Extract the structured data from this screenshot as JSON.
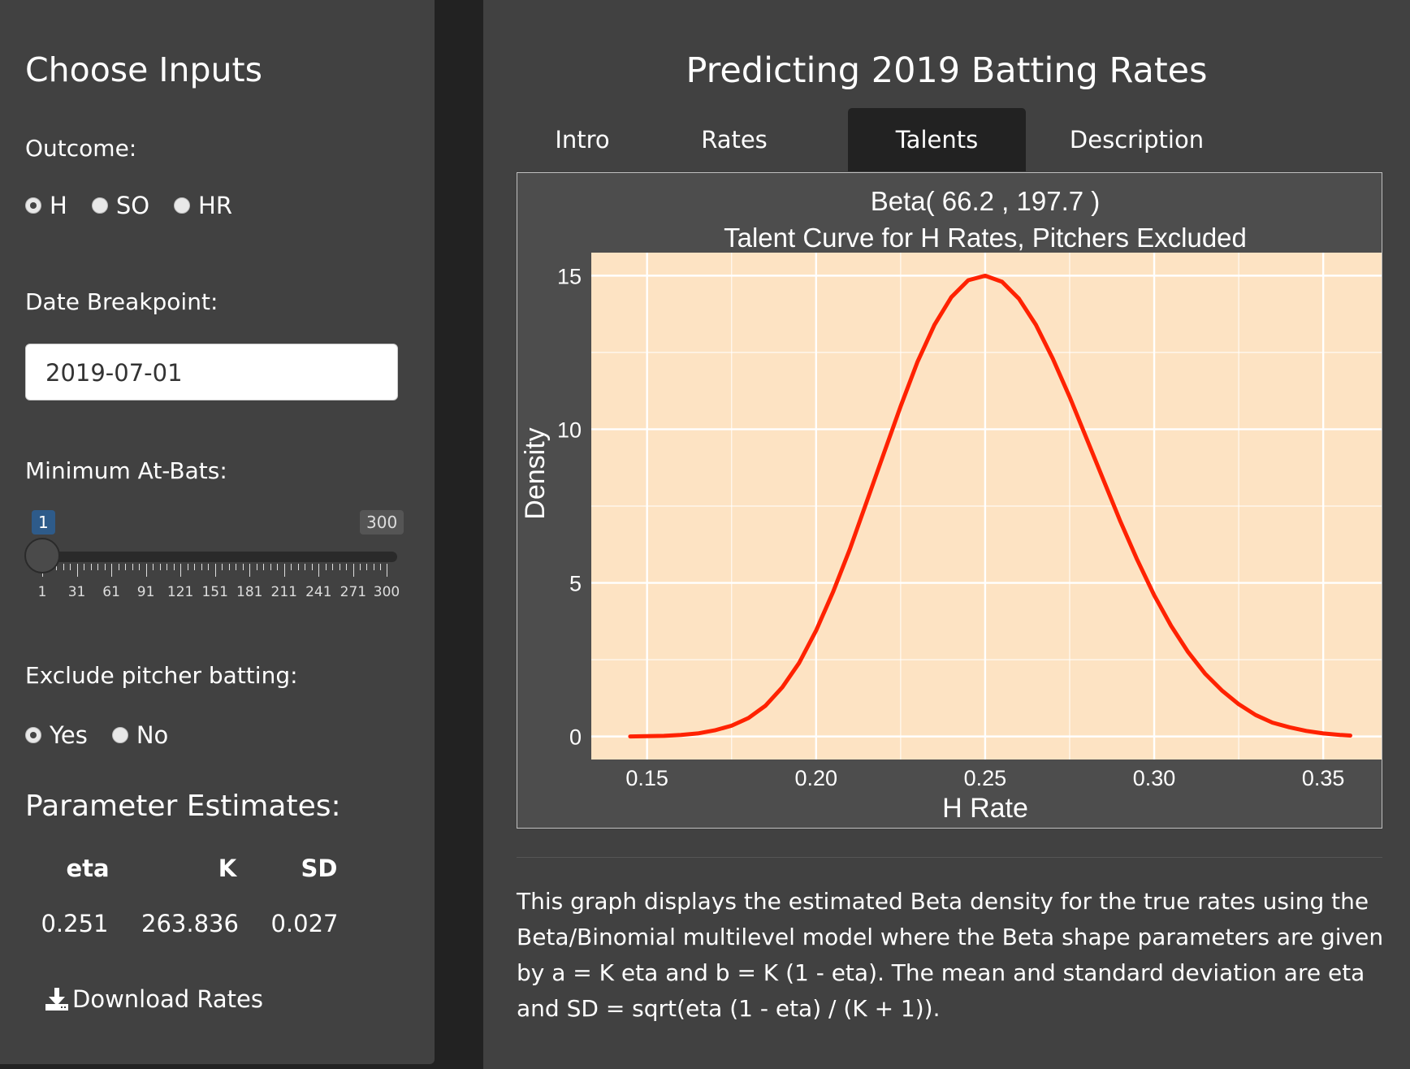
{
  "sidebar": {
    "title": "Choose Inputs",
    "outcome_label": "Outcome:",
    "outcome_options": [
      "H",
      "SO",
      "HR"
    ],
    "outcome_selected": "H",
    "date_label": "Date Breakpoint:",
    "date_value": "2019-07-01",
    "min_ab_label": "Minimum At-Bats:",
    "slider": {
      "min": 1,
      "max": 300,
      "value": 1,
      "value_label": "1",
      "max_label": "300",
      "tick_labels": [
        "1",
        "31",
        "61",
        "91",
        "121",
        "151",
        "181",
        "211",
        "241",
        "271",
        "300"
      ]
    },
    "exclude_label": "Exclude pitcher batting:",
    "exclude_options": [
      "Yes",
      "No"
    ],
    "exclude_selected": "Yes",
    "param_title": "Parameter Estimates:",
    "param_headers": [
      "eta",
      "K",
      "SD"
    ],
    "param_values": [
      "0.251",
      "263.836",
      "0.027"
    ],
    "download_label": "Download Rates"
  },
  "main": {
    "title": "Predicting 2019 Batting Rates",
    "tabs": [
      "Intro",
      "Rates",
      "Talents",
      "Description"
    ],
    "active_tab": "Talents",
    "description": "This graph displays the estimated Beta density for the true rates using the Beta/Binomial multilevel model where the Beta shape parameters are given by a = K eta and b = K (1 - eta). The mean and standard deviation are eta and SD = sqrt(eta (1 - eta) / (K + 1))."
  },
  "chart_data": {
    "type": "line",
    "title": "Beta( 66.2 , 197.7 )",
    "subtitle": "Talent Curve for H Rates, Pitchers Excluded",
    "xlabel": "H Rate",
    "ylabel": "Density",
    "xlim": [
      0.1335,
      0.3675
    ],
    "ylim": [
      -0.75,
      15.75
    ],
    "xticks": [
      "0.15",
      "0.20",
      "0.25",
      "0.30",
      "0.35"
    ],
    "yticks": [
      "0",
      "5",
      "10",
      "15"
    ],
    "series": [
      {
        "color": "#ff2200",
        "x": [
          0.145,
          0.15,
          0.155,
          0.16,
          0.165,
          0.17,
          0.175,
          0.18,
          0.185,
          0.19,
          0.195,
          0.2,
          0.205,
          0.21,
          0.215,
          0.22,
          0.225,
          0.23,
          0.235,
          0.24,
          0.245,
          0.25,
          0.255,
          0.26,
          0.265,
          0.27,
          0.275,
          0.28,
          0.285,
          0.29,
          0.295,
          0.3,
          0.305,
          0.31,
          0.315,
          0.32,
          0.325,
          0.33,
          0.335,
          0.34,
          0.345,
          0.35,
          0.355,
          0.358
        ],
        "y": [
          0.0,
          0.01,
          0.02,
          0.05,
          0.1,
          0.2,
          0.35,
          0.6,
          1.0,
          1.6,
          2.4,
          3.45,
          4.7,
          6.1,
          7.65,
          9.2,
          10.75,
          12.2,
          13.4,
          14.3,
          14.85,
          15.0,
          14.8,
          14.25,
          13.4,
          12.3,
          11.05,
          9.7,
          8.35,
          7.0,
          5.75,
          4.6,
          3.6,
          2.75,
          2.05,
          1.5,
          1.05,
          0.7,
          0.45,
          0.3,
          0.18,
          0.1,
          0.05,
          0.03
        ]
      }
    ],
    "background": "#fde3c3",
    "grid": true
  }
}
